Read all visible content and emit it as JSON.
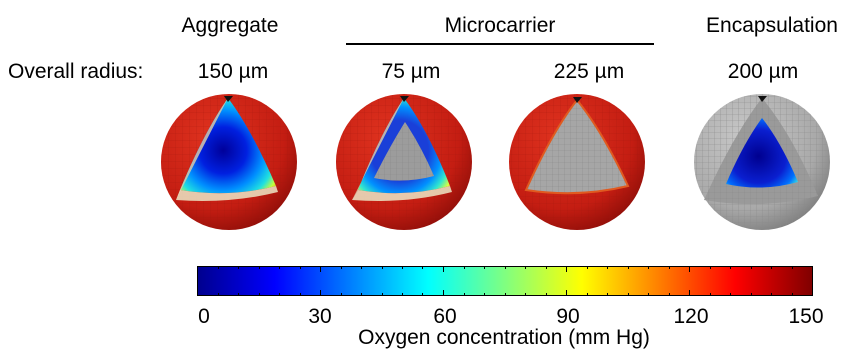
{
  "headers": {
    "aggregate": "Aggregate",
    "microcarrier": "Microcarrier",
    "encapsulation": "Encapsulation"
  },
  "row_label": "Overall radius:",
  "radii": {
    "aggregate": "150 µm",
    "microcarrier_small": "75 µm",
    "microcarrier_large": "225 µm",
    "encapsulation": "200 µm"
  },
  "colorbar": {
    "label": "Oxygen concentration (mm Hg)",
    "min": 0,
    "max": 150,
    "ticks": [
      "0",
      "30",
      "60",
      "90",
      "120",
      "150"
    ],
    "colormap": [
      "#00008f",
      "#0000ff",
      "#0080ff",
      "#00ffff",
      "#80ff80",
      "#ffff00",
      "#ff8000",
      "#ff0000",
      "#800000"
    ]
  },
  "colors": {
    "oxygen_high": "#c81e12",
    "core_gray": "#a6a6a6",
    "shell_gray": "#b4b4b4"
  }
}
